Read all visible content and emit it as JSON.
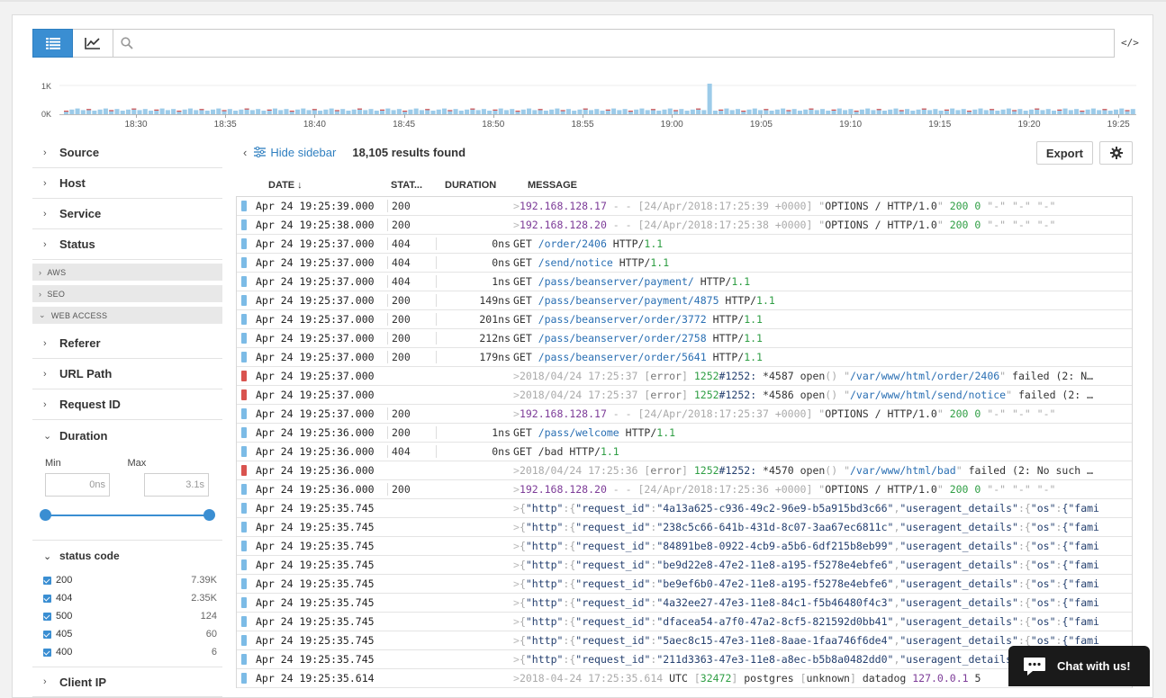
{
  "histogram": {
    "y_labels": [
      "1K",
      "0K"
    ],
    "x_labels": [
      "18:30",
      "18:35",
      "18:40",
      "18:45",
      "18:50",
      "18:55",
      "19:00",
      "19:05",
      "19:10",
      "19:15",
      "19:20",
      "19:25"
    ]
  },
  "search": {
    "placeholder": ""
  },
  "sidebar": {
    "facets_top": [
      "Source",
      "Host",
      "Service",
      "Status"
    ],
    "groups": [
      "AWS",
      "SEO",
      "WEB ACCESS"
    ],
    "facets_mid": [
      "Referer",
      "URL Path",
      "Request ID"
    ],
    "duration": {
      "label": "Duration",
      "min_label": "Min",
      "max_label": "Max",
      "min_value": "0ns",
      "max_value": "3.1s"
    },
    "status_code": {
      "label": "status code",
      "items": [
        {
          "code": "200",
          "count": "7.39K"
        },
        {
          "code": "404",
          "count": "2.35K"
        },
        {
          "code": "500",
          "count": "124"
        },
        {
          "code": "405",
          "count": "60"
        },
        {
          "code": "400",
          "count": "6"
        }
      ]
    },
    "client_ip_label": "Client IP"
  },
  "toolbar": {
    "hide_label": "Hide sidebar",
    "results": "18,105 results found",
    "export_label": "Export"
  },
  "columns": {
    "date": "DATE ↓",
    "status": "STAT...",
    "duration": "DURATION",
    "message": "MESSAGE"
  },
  "rows": [
    {
      "date": "Apr 24 19:25:39.000",
      "status": "200",
      "duration": "",
      "err": false,
      "msg": "access",
      "ip": "192.168.128.17",
      "ts": "24/Apr/2018:17:25:39 +0000",
      "req": "OPTIONS / HTTP/1.0",
      "code": "200",
      "size": "0",
      "tail": "\"-\" \"-\" \"-\""
    },
    {
      "date": "Apr 24 19:25:38.000",
      "status": "200",
      "duration": "",
      "err": false,
      "msg": "access",
      "ip": "192.168.128.20",
      "ts": "24/Apr/2018:17:25:38 +0000",
      "req": "OPTIONS / HTTP/1.0",
      "code": "200",
      "size": "0",
      "tail": "\"-\" \"-\" \"-\""
    },
    {
      "date": "Apr 24 19:25:37.000",
      "status": "404",
      "duration": "0ns",
      "err": false,
      "msg": "get",
      "path": "/order/2406",
      "ver": "1.1"
    },
    {
      "date": "Apr 24 19:25:37.000",
      "status": "404",
      "duration": "0ns",
      "err": false,
      "msg": "get",
      "path": "/send/notice",
      "ver": "1.1"
    },
    {
      "date": "Apr 24 19:25:37.000",
      "status": "404",
      "duration": "1ns",
      "err": false,
      "msg": "get",
      "path": "/pass/beanserver/payment/",
      "ver": "1.1"
    },
    {
      "date": "Apr 24 19:25:37.000",
      "status": "200",
      "duration": "149ns",
      "err": false,
      "msg": "get",
      "path": "/pass/beanserver/payment/4875",
      "ver": "1.1"
    },
    {
      "date": "Apr 24 19:25:37.000",
      "status": "200",
      "duration": "201ns",
      "err": false,
      "msg": "get",
      "path": "/pass/beanserver/order/3772",
      "ver": "1.1"
    },
    {
      "date": "Apr 24 19:25:37.000",
      "status": "200",
      "duration": "212ns",
      "err": false,
      "msg": "get",
      "path": "/pass/beanserver/order/2758",
      "ver": "1.1"
    },
    {
      "date": "Apr 24 19:25:37.000",
      "status": "200",
      "duration": "179ns",
      "err": false,
      "msg": "get",
      "path": "/pass/beanserver/order/5641",
      "ver": "1.1"
    },
    {
      "date": "Apr 24 19:25:37.000",
      "status": "",
      "duration": "",
      "err": true,
      "msg": "error",
      "ts": "2018/04/24 17:25:37",
      "pid": "1252",
      "cid": "*4587",
      "file": "/var/www/html/order/2406",
      "tail": "failed (2: N…"
    },
    {
      "date": "Apr 24 19:25:37.000",
      "status": "",
      "duration": "",
      "err": true,
      "msg": "error",
      "ts": "2018/04/24 17:25:37",
      "pid": "1252",
      "cid": "*4586",
      "file": "/var/www/html/send/notice",
      "tail": "failed (2: …"
    },
    {
      "date": "Apr 24 19:25:37.000",
      "status": "200",
      "duration": "",
      "err": false,
      "msg": "access",
      "ip": "192.168.128.17",
      "ts": "24/Apr/2018:17:25:37 +0000",
      "req": "OPTIONS / HTTP/1.0",
      "code": "200",
      "size": "0",
      "tail": "\"-\" \"-\" \"-\""
    },
    {
      "date": "Apr 24 19:25:36.000",
      "status": "200",
      "duration": "1ns",
      "err": false,
      "msg": "get",
      "path": "/pass/welcome",
      "ver": "1.1"
    },
    {
      "date": "Apr 24 19:25:36.000",
      "status": "404",
      "duration": "0ns",
      "err": false,
      "msg": "getplain",
      "path": "/bad",
      "ver": "1.1"
    },
    {
      "date": "Apr 24 19:25:36.000",
      "status": "",
      "duration": "",
      "err": true,
      "msg": "error",
      "ts": "2018/04/24 17:25:36",
      "pid": "1252",
      "cid": "*4570",
      "file": "/var/www/html/bad",
      "tail": "failed (2: No such …"
    },
    {
      "date": "Apr 24 19:25:36.000",
      "status": "200",
      "duration": "",
      "err": false,
      "msg": "access",
      "ip": "192.168.128.20",
      "ts": "24/Apr/2018:17:25:36 +0000",
      "req": "OPTIONS / HTTP/1.0",
      "code": "200",
      "size": "0",
      "tail": "\"-\" \"-\" \"-\""
    },
    {
      "date": "Apr 24 19:25:35.745",
      "status": "",
      "duration": "",
      "err": false,
      "msg": "json",
      "rid": "4a13a625-c936-49c2-96e9-b5a915bd3c66"
    },
    {
      "date": "Apr 24 19:25:35.745",
      "status": "",
      "duration": "",
      "err": false,
      "msg": "json",
      "rid": "238c5c66-641b-431d-8c07-3aa67ec6811c"
    },
    {
      "date": "Apr 24 19:25:35.745",
      "status": "",
      "duration": "",
      "err": false,
      "msg": "json",
      "rid": "84891be8-0922-4cb9-a5b6-6df215b8eb99"
    },
    {
      "date": "Apr 24 19:25:35.745",
      "status": "",
      "duration": "",
      "err": false,
      "msg": "json",
      "rid": "be9d22e8-47e2-11e8-a195-f5278e4ebfe6"
    },
    {
      "date": "Apr 24 19:25:35.745",
      "status": "",
      "duration": "",
      "err": false,
      "msg": "json",
      "rid": "be9ef6b0-47e2-11e8-a195-f5278e4ebfe6"
    },
    {
      "date": "Apr 24 19:25:35.745",
      "status": "",
      "duration": "",
      "err": false,
      "msg": "json",
      "rid": "4a32ee27-47e3-11e8-84c1-f5b46480f4c3"
    },
    {
      "date": "Apr 24 19:25:35.745",
      "status": "",
      "duration": "",
      "err": false,
      "msg": "json",
      "rid": "dfacea54-a7f0-47a2-8cf5-821592d0bb41"
    },
    {
      "date": "Apr 24 19:25:35.745",
      "status": "",
      "duration": "",
      "err": false,
      "msg": "json",
      "rid": "5aec8c15-47e3-11e8-8aae-1faa746f6de4"
    },
    {
      "date": "Apr 24 19:25:35.745",
      "status": "",
      "duration": "",
      "err": false,
      "msg": "json",
      "rid": "211d3363-47e3-11e8-a8ec-b5b8a0482dd0"
    },
    {
      "date": "Apr 24 19:25:35.614",
      "status": "",
      "duration": "",
      "err": false,
      "msg": "pg",
      "ts": "2018-04-24 17:25:35.614",
      "tz": "UTC",
      "pid": "32472",
      "proc": "postgres",
      "user": "unknown",
      "db": "datadog",
      "host": "127.0.0.1",
      "tail": "5"
    }
  ],
  "json_keys": {
    "http": "\"http\"",
    "request_id": "\"request_id\"",
    "useragent": "\"useragent_details\"",
    "os": "\"os\"",
    "fami": "{\"fami"
  },
  "chat": {
    "label": "Chat with us!"
  },
  "colors": {
    "accent": "#3a8ed2",
    "error": "#d9534f",
    "info": "#7cbbe6"
  }
}
